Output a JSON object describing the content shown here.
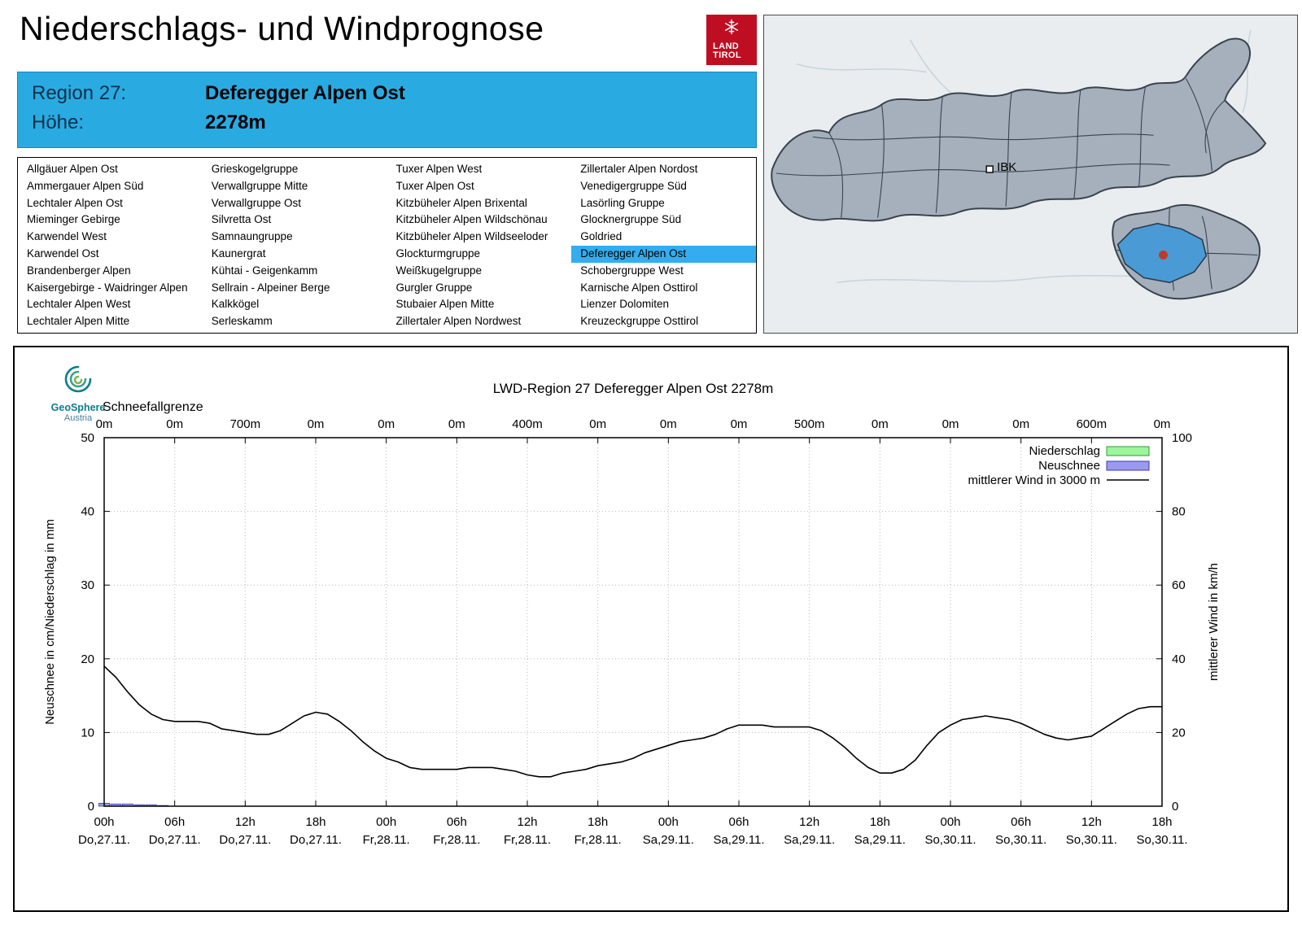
{
  "header": {
    "title": "Niederschlags- und Windprognose",
    "logo_line1": "LAND",
    "logo_line2": "TIROL",
    "logo_color": "#bf0d22"
  },
  "region_banner": {
    "region_label": "Region 27:",
    "region_value": "Deferegger Alpen Ost",
    "altitude_label": "Höhe:",
    "altitude_value": "2278m",
    "background": "#29abe2"
  },
  "region_list": {
    "selected": "Deferegger Alpen Ost",
    "highlight_color": "#33adf0",
    "columns": [
      [
        "Allgäuer Alpen Ost",
        "Ammergauer Alpen Süd",
        "Lechtaler Alpen Ost",
        "Mieminger Gebirge",
        "Karwendel West",
        "Karwendel Ost",
        "Brandenberger Alpen",
        "Kaisergebirge - Waidringer Alpen",
        "Lechtaler Alpen West",
        "Lechtaler Alpen Mitte"
      ],
      [
        "Grieskogelgruppe",
        "Verwallgruppe Mitte",
        "Verwallgruppe Ost",
        "Silvretta Ost",
        "Samnaungruppe",
        "Kaunergrat",
        "Kühtai - Geigenkamm",
        "Sellrain - Alpeiner Berge",
        "Kalkkögel",
        "Serleskamm"
      ],
      [
        "Tuxer Alpen West",
        "Tuxer Alpen Ost",
        "Kitzbüheler Alpen Brixental",
        "Kitzbüheler Alpen Wildschönau",
        "Kitzbüheler Alpen Wildseeloder",
        "Glockturmgruppe",
        "Weißkugelgruppe",
        "Gurgler Gruppe",
        "Stubaier Alpen Mitte",
        "Zillertaler Alpen Nordwest"
      ],
      [
        "Zillertaler Alpen Nordost",
        "Venedigergruppe Süd",
        "Lasörling Gruppe",
        "Glocknergruppe Süd",
        "Goldried",
        "Deferegger Alpen Ost",
        "Schobergruppe West",
        "Karnische Alpen Osttirol",
        "Lienzer Dolomiten",
        "Kreuzeckgruppe Osttirol"
      ]
    ]
  },
  "map": {
    "city_label": "IBK",
    "selected_region_color": "#4a9bd5",
    "marker_color": "#c0392b"
  },
  "geosphere": {
    "name": "GeoSphere",
    "sub": "Austria"
  },
  "chart_data": {
    "type": "line",
    "title": "LWD-Region 27 Deferegger Alpen Ost 2278m",
    "snowline_label": "Schneefallgrenze",
    "snowline_values": [
      "0m",
      "0m",
      "700m",
      "0m",
      "0m",
      "0m",
      "400m",
      "0m",
      "0m",
      "0m",
      "500m",
      "0m",
      "0m",
      "0m",
      "600m",
      "0m"
    ],
    "ylabel_left": "Neuschnee in cm/Niederschlag in mm",
    "ylabel_right": "mittlerer Wind in km/h",
    "ylim_left": [
      0,
      50
    ],
    "ylim_right": [
      0,
      100
    ],
    "yticks_left": [
      0,
      10,
      20,
      30,
      40,
      50
    ],
    "yticks_right": [
      0,
      20,
      40,
      60,
      80,
      100
    ],
    "grid": true,
    "legend_position": "top-right",
    "hours_total": 90,
    "x_ticks": [
      {
        "time": "00h",
        "date": "Do,27.11."
      },
      {
        "time": "06h",
        "date": "Do,27.11."
      },
      {
        "time": "12h",
        "date": "Do,27.11."
      },
      {
        "time": "18h",
        "date": "Do,27.11."
      },
      {
        "time": "00h",
        "date": "Fr,28.11."
      },
      {
        "time": "06h",
        "date": "Fr,28.11."
      },
      {
        "time": "12h",
        "date": "Fr,28.11."
      },
      {
        "time": "18h",
        "date": "Fr,28.11."
      },
      {
        "time": "00h",
        "date": "Sa,29.11."
      },
      {
        "time": "06h",
        "date": "Sa,29.11."
      },
      {
        "time": "12h",
        "date": "Sa,29.11."
      },
      {
        "time": "18h",
        "date": "Sa,29.11."
      },
      {
        "time": "00h",
        "date": "So,30.11."
      },
      {
        "time": "06h",
        "date": "So,30.11."
      },
      {
        "time": "12h",
        "date": "So,30.11."
      },
      {
        "time": "18h",
        "date": "So,30.11."
      }
    ],
    "legend": [
      {
        "label": "Niederschlag",
        "swatch": "box",
        "fill": "#9bf59b",
        "stroke": "#2f9e2f"
      },
      {
        "label": "Neuschnee",
        "swatch": "box",
        "fill": "#9a9aef",
        "stroke": "#3b3bb0"
      },
      {
        "label": "mittlerer Wind in 3000 m",
        "swatch": "line",
        "stroke": "#000000"
      }
    ],
    "colors": {
      "wind": "#000000",
      "neuschnee_fill": "#9a9aef",
      "neuschnee_stroke": "#3b3bb0",
      "niederschlag_fill": "#9bf59b",
      "niederschlag_stroke": "#2f9e2f",
      "grid": "#b9b9b9"
    },
    "wind_kmh": [
      38,
      35,
      31,
      27.5,
      25,
      23.5,
      23,
      23,
      23,
      22.5,
      21,
      20.5,
      20,
      19.5,
      19.5,
      20.5,
      22.5,
      24.5,
      25.5,
      25,
      23,
      20.5,
      17.5,
      15,
      13,
      12,
      10.5,
      10,
      10,
      10,
      10,
      10.5,
      10.5,
      10.5,
      10,
      9.5,
      8.5,
      8,
      8,
      9,
      9.5,
      10,
      11,
      11.5,
      12,
      13,
      14.5,
      15.5,
      16.5,
      17.5,
      18,
      18.5,
      19.5,
      21,
      22,
      22,
      22,
      21.5,
      21.5,
      21.5,
      21.5,
      20.5,
      18.5,
      16,
      13,
      10.5,
      9,
      9,
      10,
      12.5,
      16.5,
      20,
      22,
      23.5,
      24,
      24.5,
      24,
      23.5,
      22.5,
      21,
      19.5,
      18.5,
      18,
      18.5,
      19,
      21,
      23,
      25,
      26.5,
      27,
      27
    ],
    "neuschnee_hours": [
      0,
      1,
      2,
      3,
      4,
      5
    ],
    "neuschnee_cm": [
      0.4,
      0.3,
      0.3,
      0.2,
      0.2,
      0.1
    ],
    "niederschlag_mm": []
  }
}
